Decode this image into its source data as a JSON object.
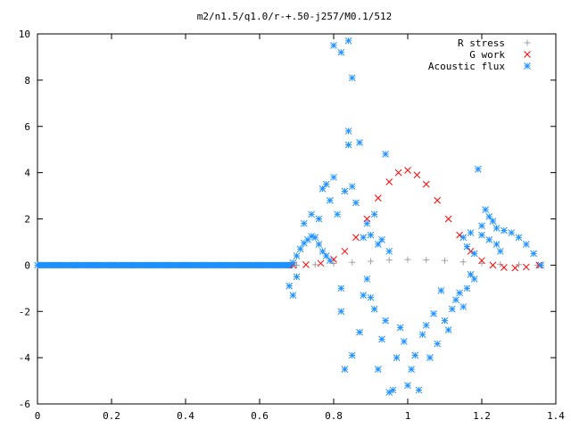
{
  "chart_data": {
    "type": "scatter",
    "title": "m2/n1.5/q1.0/r-+.50-j257/M0.1/512",
    "xlabel": "",
    "ylabel": "",
    "xlim": [
      0,
      1.4
    ],
    "ylim": [
      -6,
      10
    ],
    "xticks": [
      "0",
      "0.2",
      "0.4",
      "0.6",
      "0.8",
      "1",
      "1.2",
      "1.4"
    ],
    "yticks": [
      "-6",
      "-4",
      "-2",
      "0",
      "2",
      "4",
      "6",
      "8",
      "10"
    ],
    "grid": false,
    "legend": "top-right",
    "series": [
      {
        "name": "R stress",
        "marker": "plus",
        "color": "#a0a0a0",
        "points": [
          [
            0.7,
            0.0
          ],
          [
            0.75,
            0.02
          ],
          [
            0.8,
            0.07
          ],
          [
            0.85,
            0.12
          ],
          [
            0.9,
            0.17
          ],
          [
            0.95,
            0.22
          ],
          [
            1.0,
            0.24
          ],
          [
            1.05,
            0.23
          ],
          [
            1.1,
            0.2
          ],
          [
            1.15,
            0.14
          ],
          [
            1.2,
            0.08
          ],
          [
            1.25,
            0.04
          ],
          [
            1.3,
            0.02
          ],
          [
            1.35,
            0.0
          ]
        ]
      },
      {
        "name": "G work",
        "marker": "cross",
        "color": "#ff0000",
        "points": [
          [
            0.69,
            0.0
          ],
          [
            0.725,
            0.02
          ],
          [
            0.765,
            0.08
          ],
          [
            0.8,
            0.25
          ],
          [
            0.83,
            0.6
          ],
          [
            0.86,
            1.2
          ],
          [
            0.89,
            2.0
          ],
          [
            0.92,
            2.9
          ],
          [
            0.95,
            3.6
          ],
          [
            0.975,
            4.0
          ],
          [
            1.0,
            4.1
          ],
          [
            1.025,
            3.9
          ],
          [
            1.05,
            3.5
          ],
          [
            1.08,
            2.8
          ],
          [
            1.11,
            2.0
          ],
          [
            1.14,
            1.3
          ],
          [
            1.17,
            0.6
          ],
          [
            1.2,
            0.2
          ],
          [
            1.23,
            0.0
          ],
          [
            1.26,
            -0.1
          ],
          [
            1.29,
            -0.12
          ],
          [
            1.32,
            -0.08
          ],
          [
            1.355,
            0.0
          ]
        ]
      },
      {
        "name": "Acoustic flux",
        "marker": "star",
        "color": "#1e90ff",
        "points": [
          [
            0.0,
            0.0
          ],
          [
            0.05,
            0.0
          ],
          [
            0.1,
            0.0
          ],
          [
            0.15,
            0.0
          ],
          [
            0.2,
            0.0
          ],
          [
            0.25,
            0.0
          ],
          [
            0.3,
            0.0
          ],
          [
            0.35,
            0.0
          ],
          [
            0.4,
            0.0
          ],
          [
            0.45,
            0.0
          ],
          [
            0.5,
            0.0
          ],
          [
            0.55,
            0.0
          ],
          [
            0.6,
            0.0
          ],
          [
            0.65,
            0.0
          ],
          [
            0.68,
            0.0
          ],
          [
            0.69,
            0.1
          ],
          [
            0.7,
            0.4
          ],
          [
            0.71,
            0.7
          ],
          [
            0.72,
            0.95
          ],
          [
            0.73,
            1.1
          ],
          [
            0.74,
            1.25
          ],
          [
            0.75,
            1.2
          ],
          [
            0.76,
            0.9
          ],
          [
            0.77,
            0.6
          ],
          [
            0.78,
            0.4
          ],
          [
            0.79,
            0.2
          ],
          [
            0.68,
            -0.9
          ],
          [
            0.69,
            -1.3
          ],
          [
            0.7,
            -0.5
          ],
          [
            0.72,
            1.8
          ],
          [
            0.74,
            2.2
          ],
          [
            0.76,
            2.0
          ],
          [
            0.77,
            3.3
          ],
          [
            0.78,
            3.5
          ],
          [
            0.79,
            2.8
          ],
          [
            0.8,
            3.8
          ],
          [
            0.81,
            2.2
          ],
          [
            0.82,
            -1.0
          ],
          [
            0.83,
            3.2
          ],
          [
            0.84,
            5.2
          ],
          [
            0.85,
            3.4
          ],
          [
            0.86,
            2.7
          ],
          [
            0.87,
            5.3
          ],
          [
            0.8,
            9.5
          ],
          [
            0.82,
            9.2
          ],
          [
            0.84,
            9.7
          ],
          [
            0.85,
            8.1
          ],
          [
            0.84,
            5.8
          ],
          [
            0.83,
            -4.5
          ],
          [
            0.82,
            -2.0
          ],
          [
            0.85,
            -3.9
          ],
          [
            0.87,
            -2.9
          ],
          [
            0.88,
            -1.3
          ],
          [
            0.89,
            -0.6
          ],
          [
            0.9,
            -1.4
          ],
          [
            0.91,
            -1.9
          ],
          [
            0.92,
            -4.5
          ],
          [
            0.93,
            -3.2
          ],
          [
            0.94,
            -2.4
          ],
          [
            0.95,
            -5.5
          ],
          [
            0.96,
            -5.4
          ],
          [
            0.97,
            -4.0
          ],
          [
            0.98,
            -2.7
          ],
          [
            0.99,
            -3.3
          ],
          [
            1.0,
            -5.2
          ],
          [
            1.01,
            -4.5
          ],
          [
            1.02,
            -3.9
          ],
          [
            1.03,
            -5.4
          ],
          [
            1.04,
            -3.0
          ],
          [
            1.05,
            -2.6
          ],
          [
            1.06,
            -4.0
          ],
          [
            1.07,
            -2.1
          ],
          [
            1.08,
            -3.4
          ],
          [
            1.09,
            -1.1
          ],
          [
            1.1,
            -2.4
          ],
          [
            1.11,
            -2.8
          ],
          [
            1.12,
            -1.9
          ],
          [
            1.13,
            -1.5
          ],
          [
            1.14,
            -1.2
          ],
          [
            1.15,
            -1.8
          ],
          [
            1.16,
            -1.0
          ],
          [
            1.17,
            -0.4
          ],
          [
            1.18,
            -0.6
          ],
          [
            0.88,
            1.2
          ],
          [
            0.89,
            1.8
          ],
          [
            0.9,
            1.3
          ],
          [
            0.91,
            2.2
          ],
          [
            0.92,
            0.9
          ],
          [
            0.93,
            1.1
          ],
          [
            0.94,
            4.8
          ],
          [
            0.95,
            0.6
          ],
          [
            1.15,
            1.2
          ],
          [
            1.16,
            0.8
          ],
          [
            1.17,
            1.4
          ],
          [
            1.18,
            0.5
          ],
          [
            1.19,
            4.15
          ],
          [
            1.2,
            1.7
          ],
          [
            1.21,
            2.4
          ],
          [
            1.22,
            2.1
          ],
          [
            1.23,
            1.9
          ],
          [
            1.24,
            0.9
          ],
          [
            1.25,
            0.6
          ],
          [
            1.2,
            1.3
          ],
          [
            1.22,
            1.1
          ],
          [
            1.24,
            1.6
          ],
          [
            1.26,
            1.5
          ],
          [
            1.28,
            1.4
          ],
          [
            1.3,
            1.2
          ],
          [
            1.32,
            0.9
          ],
          [
            1.34,
            0.5
          ],
          [
            1.36,
            0.0
          ]
        ]
      }
    ]
  }
}
